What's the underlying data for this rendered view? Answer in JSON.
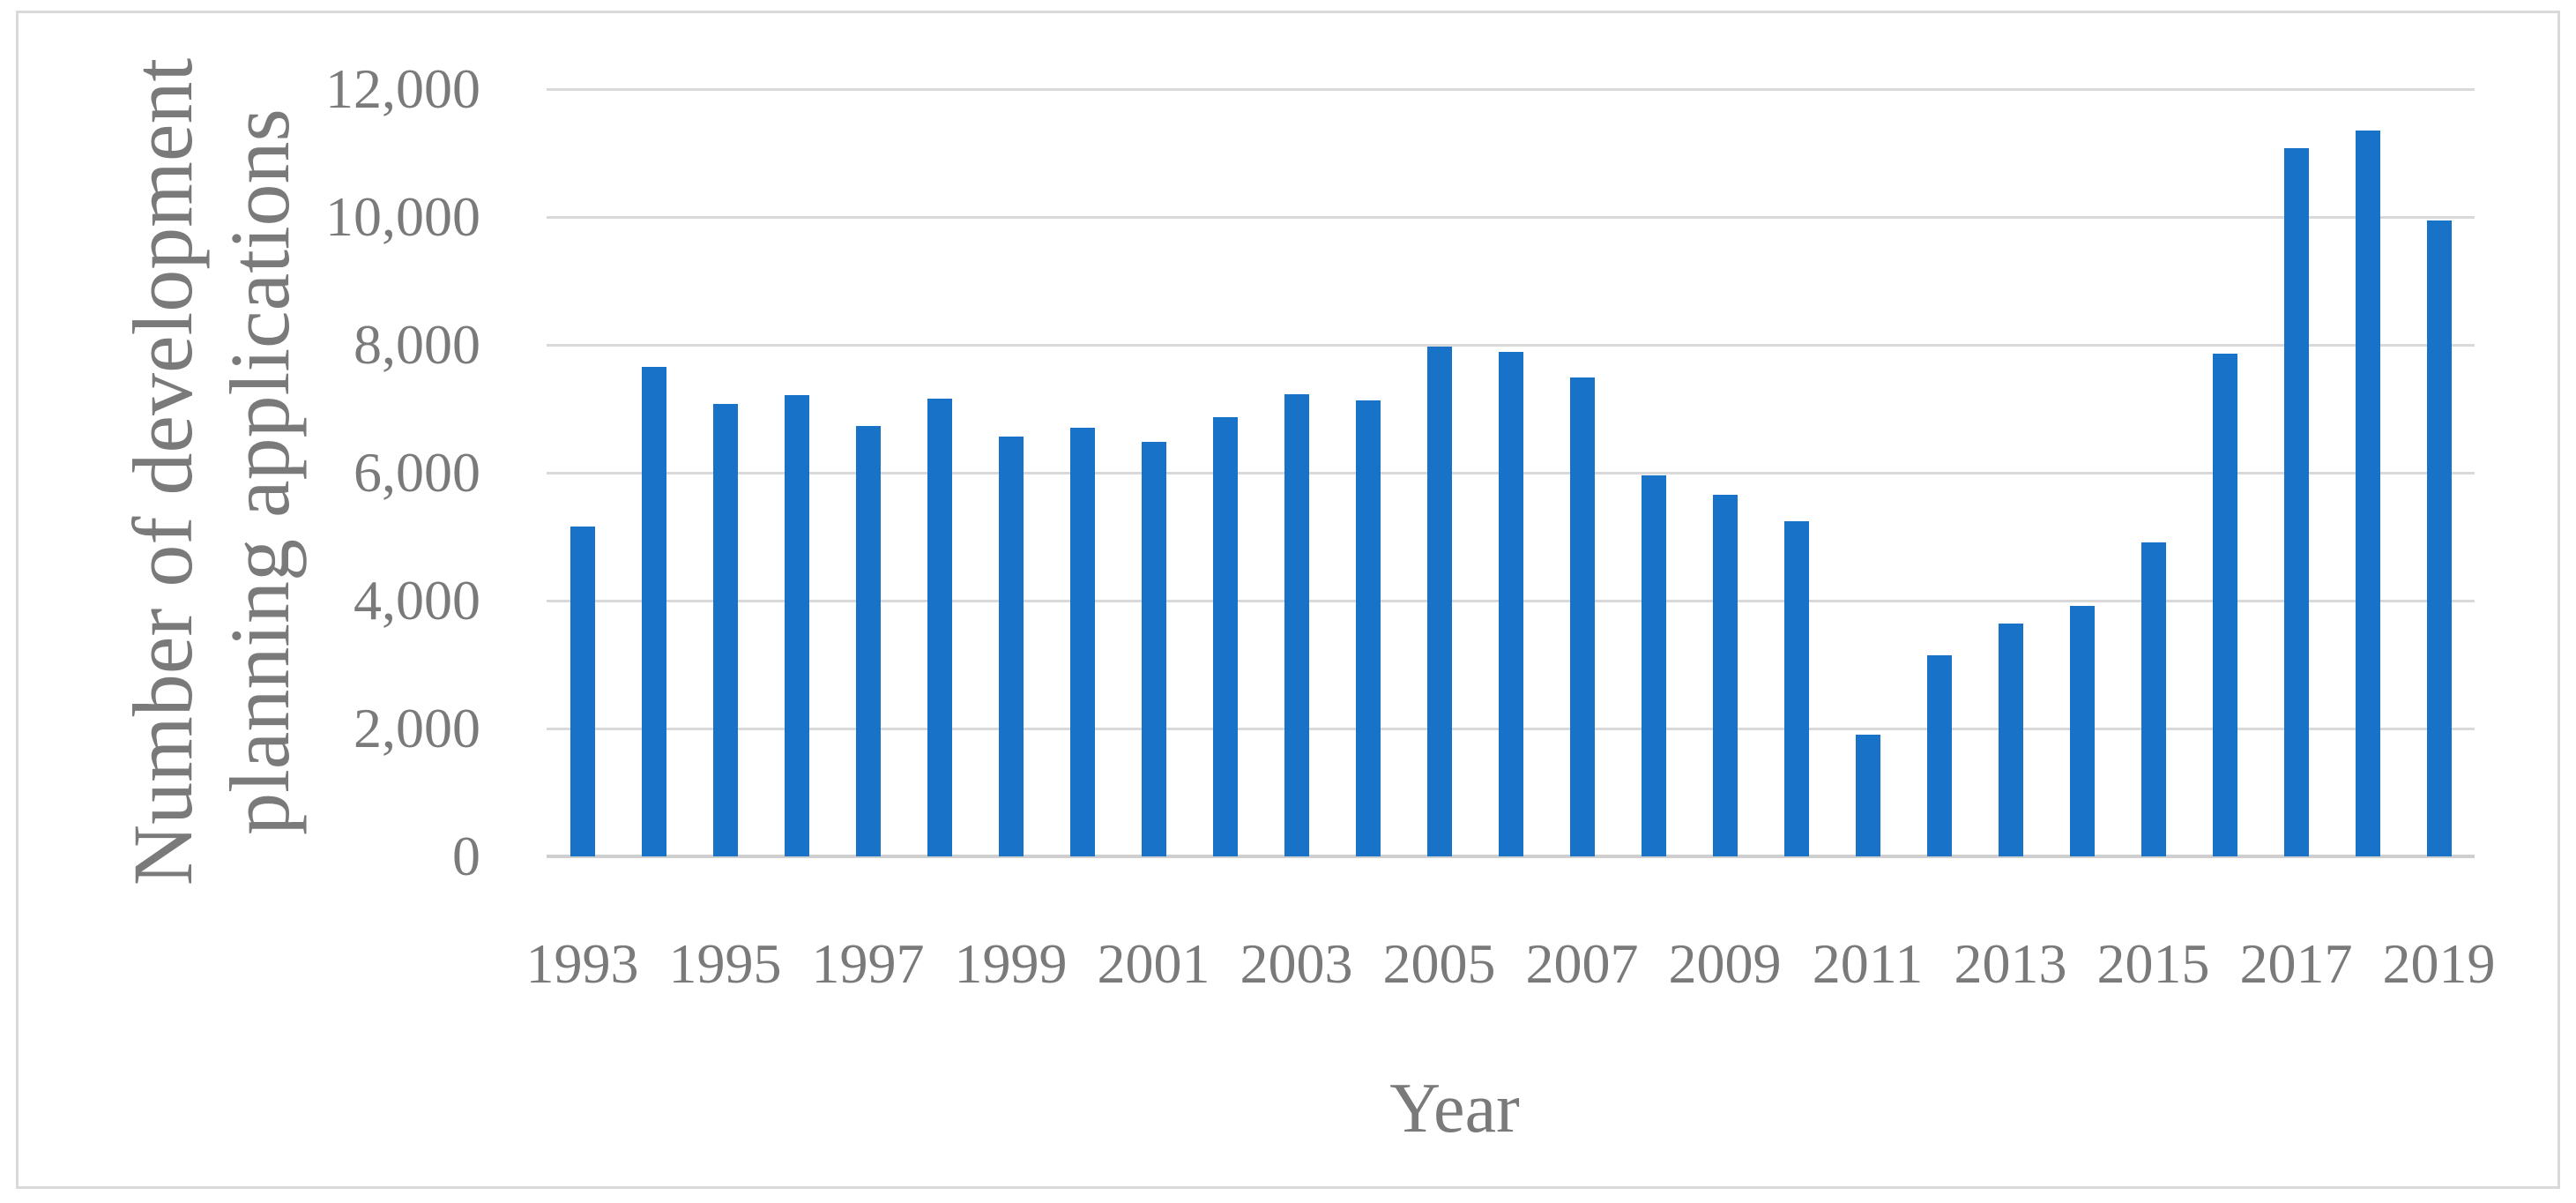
{
  "figure": {
    "background": "#ffffff",
    "border_color": "#d9d9d9"
  },
  "chart_data": {
    "type": "bar",
    "title": "",
    "xlabel": "Year",
    "ylabel": "Number of development planning applications",
    "ylabel_lines": [
      "Number of development",
      "planning applications"
    ],
    "categories": [
      1993,
      1994,
      1995,
      1996,
      1997,
      1998,
      1999,
      2000,
      2001,
      2002,
      2003,
      2004,
      2005,
      2006,
      2007,
      2008,
      2009,
      2010,
      2011,
      2012,
      2013,
      2014,
      2015,
      2016,
      2017,
      2018,
      2019
    ],
    "values": [
      5160,
      7650,
      7080,
      7210,
      6730,
      7160,
      6560,
      6710,
      6480,
      6870,
      7230,
      7130,
      7970,
      7890,
      7490,
      5960,
      5650,
      5240,
      1900,
      3140,
      3640,
      3920,
      4910,
      7860,
      11070,
      11350,
      9940
    ],
    "series_name": "Number of development planning applications",
    "bar_color": "#1872c7",
    "ylim": [
      0,
      12000
    ],
    "yticks": [
      0,
      2000,
      4000,
      6000,
      8000,
      10000,
      12000
    ],
    "ytick_labels": [
      "0",
      "2,000",
      "4,000",
      "6,000",
      "8,000",
      "10,000",
      "12,000"
    ],
    "xtick_labels": [
      "1993",
      "1995",
      "1997",
      "1999",
      "2001",
      "2003",
      "2005",
      "2007",
      "2009",
      "2011",
      "2013",
      "2015",
      "2017",
      "2019"
    ],
    "xtick_every": 2,
    "grid": true,
    "gridline_color": "#d9d9d9",
    "axis_line_color": "#cfcfcf",
    "text_color": "#7a7a7a",
    "legend": "none"
  }
}
